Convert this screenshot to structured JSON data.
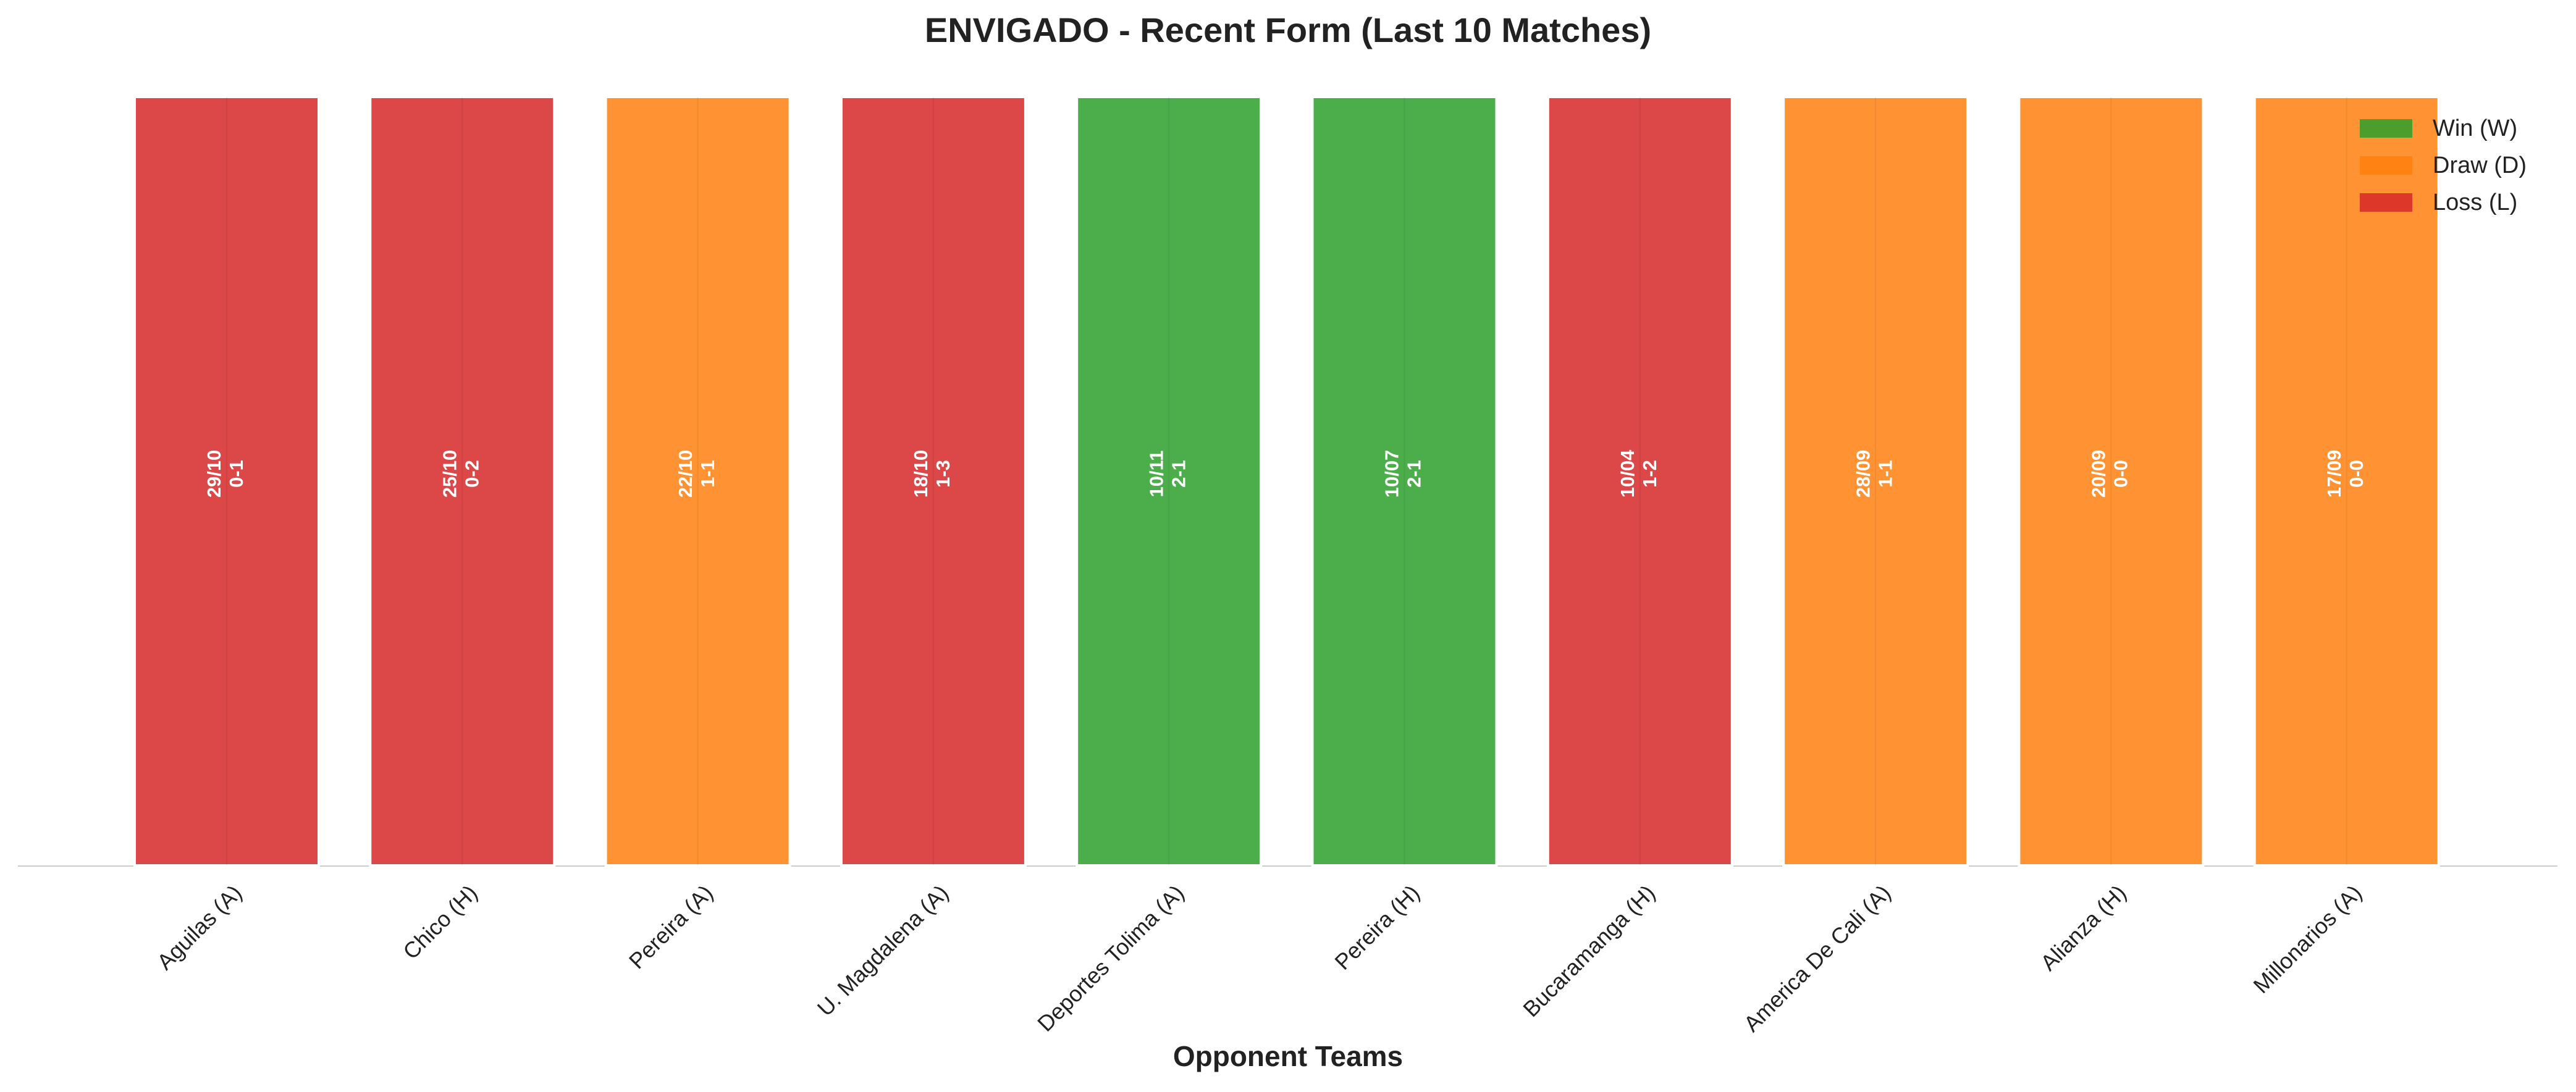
{
  "chart_data": {
    "type": "bar",
    "title": "ENVIGADO - Recent Form (Last 10 Matches)",
    "x_label": "Opponent Teams",
    "categories": [
      "Aguilas (A)",
      "Chico (H)",
      "Pereira (A)",
      "U. Magdalena (A)",
      "Deportes Tolima (A)",
      "Pereira (H)",
      "Bucaramanga (H)",
      "America De Cali (A)",
      "Alianza (H)",
      "Millonarios (A)"
    ],
    "values": [
      1,
      1,
      1,
      1,
      1,
      1,
      1,
      1,
      1,
      1
    ],
    "dates": [
      "29/10",
      "25/10",
      "22/10",
      "18/10",
      "10/11",
      "10/07",
      "10/04",
      "28/09",
      "20/09",
      "17/09"
    ],
    "scores": [
      "0-1",
      "0-2",
      "1-1",
      "1-3",
      "2-1",
      "2-1",
      "1-2",
      "1-1",
      "0-0",
      "0-0"
    ],
    "colors": [
      "#d62728",
      "#d62728",
      "#ff7f0e",
      "#d62728",
      "#2ca02c",
      "#2ca02c",
      "#d62728",
      "#ff7f0e",
      "#ff7f0e",
      "#ff7f0e"
    ],
    "ylim": [
      0,
      1.0
    ],
    "legend": [
      {
        "name": "Win (W)",
        "color": "#2ca02c"
      },
      {
        "name": "Draw (D)",
        "color": "#ff7f0e"
      },
      {
        "name": "Loss (L)",
        "color": "#d62728"
      }
    ],
    "legend_position": "upper right"
  }
}
